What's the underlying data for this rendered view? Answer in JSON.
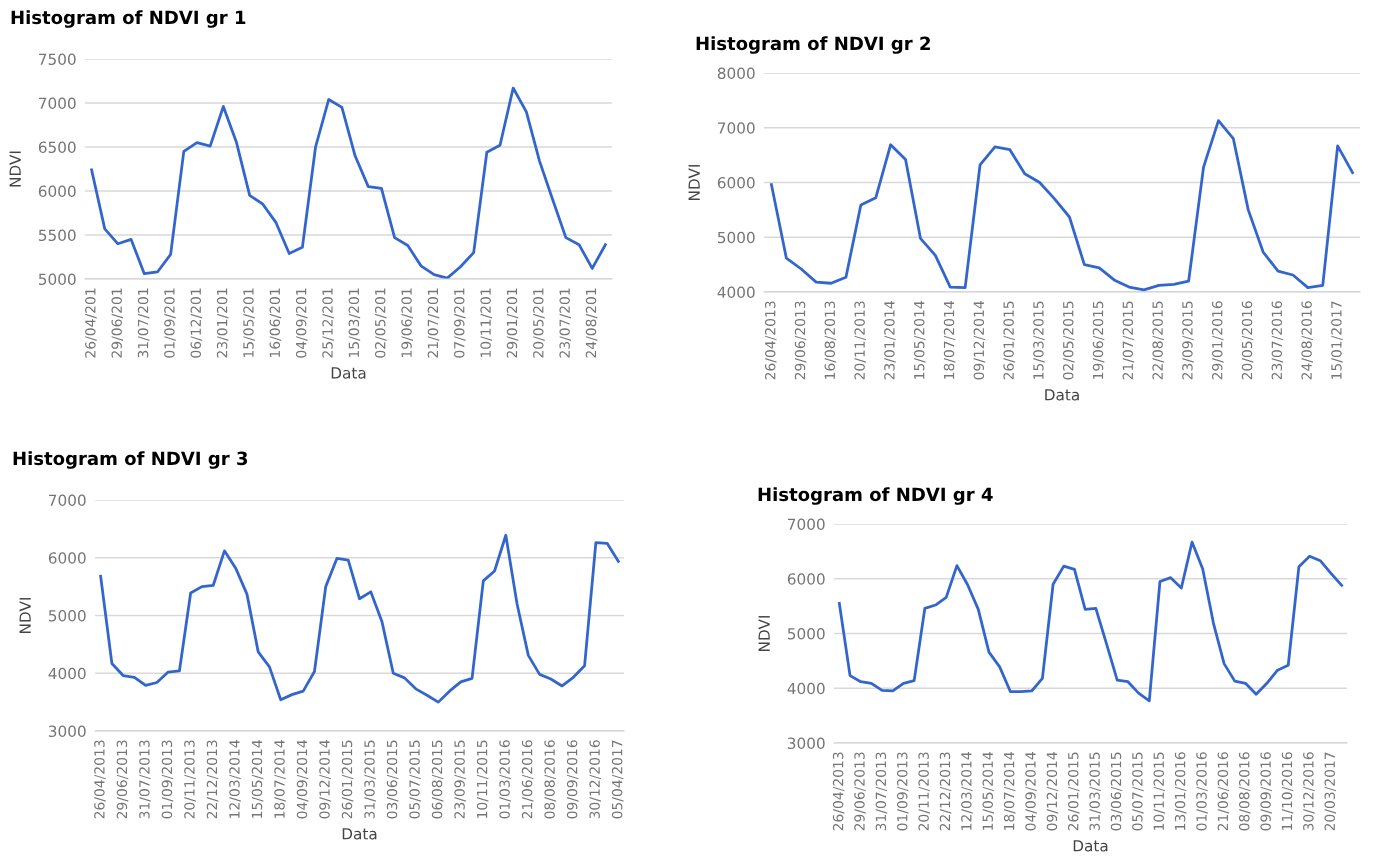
{
  "chart_data": [
    {
      "type": "line",
      "title": "Histogram of NDVI gr 1",
      "xlabel": "Data",
      "ylabel": "NDVI",
      "ylim": [
        5000,
        7500
      ],
      "yticks": [
        5000,
        5500,
        6000,
        6500,
        7000,
        7500
      ],
      "grid": "y",
      "color": "#3366cc",
      "categories": [
        "26/04/201",
        null,
        "29/06/201",
        null,
        "31/07/201",
        null,
        "01/09/201",
        null,
        "06/12/201",
        null,
        "23/01/201",
        null,
        "15/05/201",
        null,
        "16/06/201",
        null,
        "04/09/201",
        null,
        "25/12/201",
        null,
        "15/03/201",
        null,
        "02/05/201",
        null,
        "19/06/201",
        null,
        "21/07/201",
        null,
        "07/09/201",
        null,
        "10/11/201",
        null,
        "29/01/201",
        null,
        "20/05/201",
        null,
        "23/07/201",
        null,
        "24/08/201",
        null
      ],
      "values": [
        6240,
        5570,
        5400,
        5450,
        5060,
        5080,
        5280,
        6450,
        6550,
        6510,
        6960,
        6550,
        5950,
        5850,
        5640,
        5290,
        5360,
        6500,
        7040,
        6950,
        6400,
        6050,
        6030,
        5470,
        5380,
        5150,
        5050,
        5010,
        5140,
        5300,
        6440,
        6520,
        7170,
        6900,
        6340,
        5900,
        5470,
        5390,
        5120,
        5390
      ]
    },
    {
      "type": "line",
      "title": "Histogram of NDVI gr 2",
      "xlabel": "Data",
      "ylabel": "NDVI",
      "ylim": [
        4000,
        8000
      ],
      "yticks": [
        4000,
        5000,
        6000,
        7000,
        8000
      ],
      "grid": "y",
      "color": "#3366cc",
      "categories": [
        "26/04/2013",
        null,
        "29/06/2013",
        null,
        "16/08/2013",
        null,
        "20/11/2013",
        null,
        "23/01/2014",
        null,
        "15/05/2014",
        null,
        "18/07/2014",
        null,
        "09/12/2014",
        null,
        "26/01/2015",
        null,
        "15/03/2015",
        null,
        "02/05/2015",
        null,
        "19/06/2015",
        null,
        "21/07/2015",
        null,
        "22/08/2015",
        null,
        "23/09/2015",
        null,
        "29/01/2016",
        null,
        "20/05/2016",
        null,
        "23/07/2016",
        null,
        "24/08/2016",
        null,
        "15/01/2017",
        null
      ],
      "values": [
        5960,
        4620,
        4420,
        4180,
        4160,
        4270,
        5590,
        5720,
        6690,
        6420,
        4980,
        4670,
        4090,
        4080,
        6320,
        6650,
        6600,
        6160,
        6000,
        5700,
        5370,
        4500,
        4440,
        4220,
        4090,
        4040,
        4120,
        4140,
        4200,
        6280,
        7130,
        6800,
        5500,
        4730,
        4380,
        4310,
        4080,
        4120,
        6670,
        6180
      ]
    },
    {
      "type": "line",
      "title": "Histogram of NDVI gr 3",
      "xlabel": "Data",
      "ylabel": "NDVI",
      "ylim": [
        3000,
        7000
      ],
      "yticks": [
        3000,
        4000,
        5000,
        6000,
        7000
      ],
      "grid": "y",
      "color": "#3366cc",
      "categories": [
        "26/04/2013",
        null,
        "29/06/2013",
        null,
        "31/07/2013",
        null,
        "01/09/2013",
        null,
        "20/11/2013",
        null,
        "22/12/2013",
        null,
        "12/03/2014",
        null,
        "15/05/2014",
        null,
        "18/07/2014",
        null,
        "04/09/2014",
        null,
        "09/12/2014",
        null,
        "26/01/2015",
        null,
        "31/03/2015",
        null,
        "03/06/2015",
        null,
        "05/07/2015",
        null,
        "06/08/2015",
        null,
        "23/09/2015",
        null,
        "10/11/2015",
        null,
        "01/03/2016",
        null,
        "21/06/2016",
        null,
        "08/08/2016",
        null,
        "09/09/2016",
        null,
        "30/12/2016",
        null,
        "05/04/2017"
      ],
      "values": [
        5680,
        4170,
        3960,
        3930,
        3790,
        3840,
        4020,
        4040,
        5390,
        5500,
        5520,
        6120,
        5820,
        5370,
        4370,
        4110,
        3540,
        3630,
        3690,
        4030,
        5500,
        5990,
        5960,
        5290,
        5410,
        4890,
        4000,
        3920,
        3730,
        3620,
        3500,
        3690,
        3850,
        3910,
        5600,
        5770,
        6390,
        5200,
        4310,
        3980,
        3900,
        3780,
        3930,
        4130,
        6260,
        6250,
        5940
      ]
    },
    {
      "type": "line",
      "title": "Histogram of NDVI gr 4",
      "xlabel": "Data",
      "ylabel": "NDVI",
      "ylim": [
        3000,
        7000
      ],
      "yticks": [
        3000,
        4000,
        5000,
        6000,
        7000
      ],
      "grid": "y",
      "color": "#3366cc",
      "categories": [
        "26/04/2013",
        null,
        "29/06/2013",
        null,
        "31/07/2013",
        null,
        "01/09/2013",
        null,
        "20/11/2013",
        null,
        "22/12/2013",
        null,
        "12/03/2014",
        null,
        "15/05/2014",
        null,
        "18/07/2014",
        null,
        "04/09/2014",
        null,
        "09/12/2014",
        null,
        "26/01/2015",
        null,
        "31/03/2015",
        null,
        "03/06/2015",
        null,
        "05/07/2015",
        null,
        "10/11/2015",
        null,
        "13/01/2016",
        null,
        "01/03/2016",
        null,
        "21/06/2016",
        null,
        "08/08/2016",
        null,
        "09/09/2016",
        null,
        "11/10/2016",
        null,
        "30/12/2016",
        null,
        "20/03/2017",
        null
      ],
      "values": [
        5550,
        4230,
        4120,
        4090,
        3960,
        3950,
        4090,
        4140,
        5460,
        5520,
        5660,
        6240,
        5890,
        5440,
        4660,
        4390,
        3940,
        3940,
        3950,
        4180,
        5900,
        6230,
        6170,
        5440,
        5460,
        4810,
        4150,
        4120,
        3910,
        3770,
        5950,
        6020,
        5830,
        6670,
        6180,
        5190,
        4450,
        4130,
        4090,
        3890,
        4090,
        4330,
        4420,
        6220,
        6410,
        6330,
        6100,
        5880
      ]
    }
  ]
}
